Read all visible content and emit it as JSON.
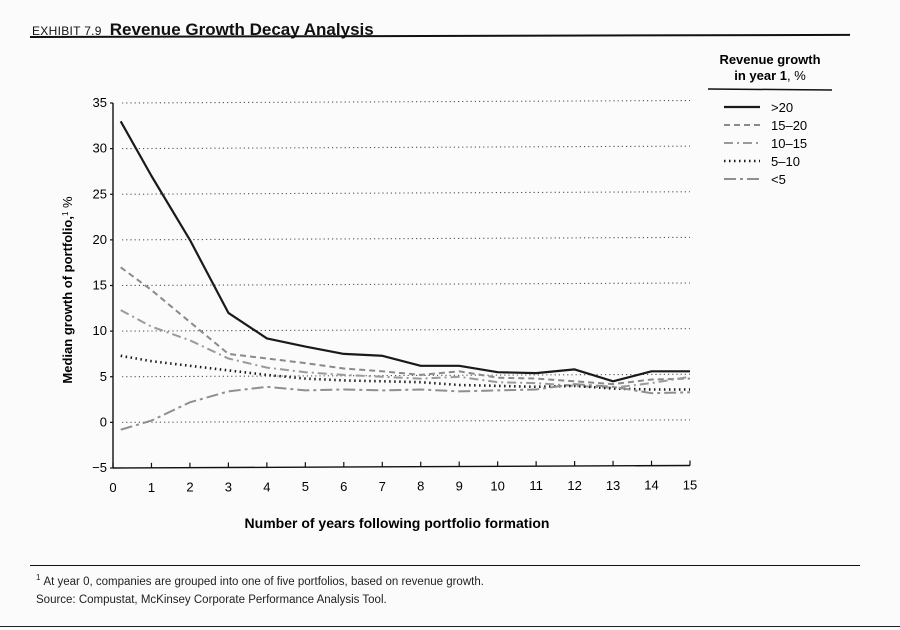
{
  "exhibit": {
    "number": "EXHIBIT 7.9",
    "title": "Revenue Growth Decay Analysis"
  },
  "footnote": {
    "marker": "1",
    "text": "At year 0, companies are grouped into one of five portfolios, based on revenue growth.",
    "source": "Source: Compustat, McKinsey Corporate Performance Analysis Tool."
  },
  "colors": {
    "series_gt20": "#1a1a1a",
    "series_15_20": "#8a8a8a",
    "series_10_15": "#9a9a9a",
    "series_5_10": "#1a1a1a",
    "series_lt5": "#8f8f8f",
    "gridline": "#555555"
  },
  "chart_data": {
    "type": "line",
    "title": "Revenue Growth Decay Analysis",
    "xlabel": "Number of years following portfolio formation",
    "ylabel": "Median growth of portfolio,",
    "ylabel_sup": "1",
    "ylabel_unit": " %",
    "xlim": [
      0,
      15
    ],
    "ylim": [
      -5,
      35
    ],
    "xticks": [
      "0",
      "1",
      "2",
      "3",
      "4",
      "5",
      "6",
      "7",
      "8",
      "9",
      "10",
      "11",
      "12",
      "13",
      "14",
      "15"
    ],
    "yticks": [
      "−5",
      "0",
      "5",
      "10",
      "15",
      "20",
      "25",
      "30",
      "35"
    ],
    "grid": "horizontal dotted",
    "legend": {
      "position": "top-right",
      "title_line1": "Revenue growth",
      "title_line2_bold": "in year 1",
      "title_line2_rest": ", %"
    },
    "x": [
      0.2,
      1,
      2,
      3,
      4,
      5,
      6,
      7,
      8,
      9,
      10,
      11,
      12,
      13,
      14,
      15
    ],
    "series": [
      {
        "name": ">20",
        "style": "solid",
        "values": [
          33,
          27,
          20,
          12,
          9.2,
          8.3,
          7.5,
          7.3,
          6.2,
          6.2,
          5.5,
          5.4,
          5.8,
          4.5,
          5.6,
          5.6
        ]
      },
      {
        "name": "15–20",
        "style": "dash",
        "values": [
          17,
          14.5,
          11,
          7.5,
          7.0,
          6.5,
          5.9,
          5.6,
          5.2,
          5.6,
          4.9,
          4.8,
          4.5,
          4.2,
          4.7,
          4.8
        ]
      },
      {
        "name": "10–15",
        "style": "dashdot",
        "values": [
          12.3,
          10.5,
          9.0,
          7.0,
          6.0,
          5.5,
          5.2,
          5.0,
          4.8,
          5.0,
          4.4,
          4.3,
          4.0,
          3.8,
          4.3,
          5.0
        ]
      },
      {
        "name": "5–10",
        "style": "dotted",
        "values": [
          7.3,
          6.7,
          6.2,
          5.7,
          5.2,
          4.8,
          4.6,
          4.5,
          4.4,
          4.1,
          4.0,
          3.9,
          4.0,
          3.7,
          3.6,
          3.6
        ]
      },
      {
        "name": "<5",
        "style": "longdash",
        "values": [
          -0.8,
          0.2,
          2.2,
          3.4,
          3.9,
          3.5,
          3.6,
          3.5,
          3.6,
          3.4,
          3.5,
          3.6,
          4.2,
          3.9,
          3.2,
          3.3
        ]
      }
    ]
  }
}
